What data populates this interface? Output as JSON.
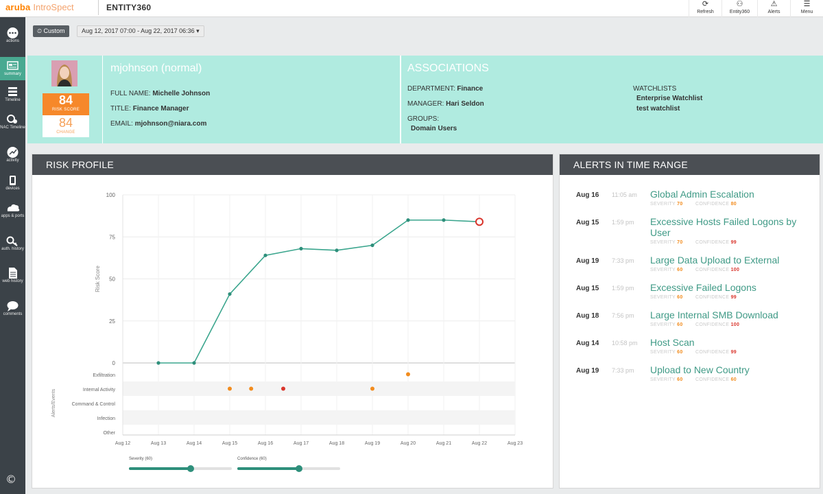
{
  "brand": {
    "part1": "aruba",
    "part2": "IntroSpect"
  },
  "app_name": "ENTITY360",
  "top_actions": [
    {
      "label": "Refresh",
      "icon": "refresh-icon"
    },
    {
      "label": "Entity360",
      "icon": "entity-icon"
    },
    {
      "label": "Alerts",
      "icon": "alerts-icon"
    },
    {
      "label": "Menu",
      "icon": "menu-icon"
    }
  ],
  "sidebar": {
    "items": [
      {
        "label": "actions",
        "icon": "actions-icon"
      },
      {
        "label": "summary",
        "icon": "summary-icon",
        "active": true
      },
      {
        "label": "Timeline",
        "icon": "timeline-icon"
      },
      {
        "label": "NAC Timeline",
        "icon": "nac-timeline-icon"
      },
      {
        "label": "activity",
        "icon": "activity-icon"
      },
      {
        "label": "devices",
        "icon": "devices-icon"
      },
      {
        "label": "apps & ports",
        "icon": "apps-icon"
      },
      {
        "label": "auth. history",
        "icon": "auth-history-icon"
      },
      {
        "label": "web history",
        "icon": "web-history-icon"
      },
      {
        "label": "comments",
        "icon": "comments-icon"
      }
    ],
    "copyright": "©"
  },
  "time_range": {
    "button": "Custom",
    "value": "Aug 12, 2017 07:00 - Aug 22, 2017 06:36"
  },
  "user": {
    "title": "mjohnson (normal)",
    "full_name_label": "FULL NAME:",
    "full_name": "Michelle Johnson",
    "title_label": "TITLE:",
    "job_title": "Finance Manager",
    "email_label": "EMAIL:",
    "email": "mjohnson@niara.com",
    "risk_score": "84",
    "risk_score_label": "RISK SCORE",
    "change": "84",
    "change_label": "CHANGE"
  },
  "associations": {
    "title": "ASSOCIATIONS",
    "department_label": "DEPARTMENT:",
    "department": "Finance",
    "manager_label": "MANAGER:",
    "manager": "Hari Seldon",
    "groups_label": "GROUPS:",
    "groups": [
      "Domain Users"
    ],
    "watchlists_label": "WATCHLISTS",
    "watchlists": [
      "Enterprise Watchlist",
      "test watchlist"
    ]
  },
  "risk_profile": {
    "title": "RISK PROFILE",
    "severity_label": "Severity (60)",
    "severity_value": 60,
    "confidence_label": "Confidence (60)",
    "confidence_value": 60
  },
  "chart_data": {
    "type": "line",
    "ylabel": "Risk Score",
    "ylim": [
      0,
      100
    ],
    "yticks": [
      0,
      25,
      50,
      75,
      100
    ],
    "xticks": [
      "Aug 12",
      "Aug 13",
      "Aug 14",
      "Aug 15",
      "Aug 16",
      "Aug 17",
      "Aug 18",
      "Aug 19",
      "Aug 20",
      "Aug 21",
      "Aug 22",
      "Aug 23"
    ],
    "x": [
      1,
      2,
      3,
      4,
      5,
      6,
      7,
      8,
      9,
      10
    ],
    "values": [
      0,
      0,
      41,
      64,
      68,
      67,
      70,
      85,
      85,
      84
    ],
    "current_index": 9,
    "grid": true,
    "events_label": "Alerts/Events",
    "event_categories": [
      "Exfiltration",
      "Internal Activity",
      "Command & Control",
      "Infection",
      "Other"
    ],
    "events": [
      {
        "x": 3.0,
        "category": "Internal Activity",
        "color": "#f28c1e"
      },
      {
        "x": 3.6,
        "category": "Internal Activity",
        "color": "#f28c1e"
      },
      {
        "x": 4.5,
        "category": "Internal Activity",
        "color": "#d9352c"
      },
      {
        "x": 7.0,
        "category": "Internal Activity",
        "color": "#f28c1e"
      },
      {
        "x": 8.0,
        "category": "Exfiltration",
        "color": "#f28c1e"
      }
    ]
  },
  "alerts_panel": {
    "title": "ALERTS IN TIME RANGE",
    "severity_label": "SEVERITY",
    "confidence_label": "CONFIDENCE",
    "items": [
      {
        "date": "Aug 16",
        "time": "11:05 am",
        "title": "Global Admin Escalation",
        "severity": "70",
        "confidence": "80",
        "conf_red": false
      },
      {
        "date": "Aug 15",
        "time": "1:59 pm",
        "title": "Excessive Hosts Failed Logons by User",
        "severity": "70",
        "confidence": "99",
        "conf_red": true
      },
      {
        "date": "Aug 19",
        "time": "7:33 pm",
        "title": "Large Data Upload to External",
        "severity": "60",
        "confidence": "100",
        "conf_red": true
      },
      {
        "date": "Aug 15",
        "time": "1:59 pm",
        "title": "Excessive Failed Logons",
        "severity": "60",
        "confidence": "99",
        "conf_red": true
      },
      {
        "date": "Aug 18",
        "time": "7:56 pm",
        "title": "Large Internal SMB Download",
        "severity": "60",
        "confidence": "100",
        "conf_red": true
      },
      {
        "date": "Aug 14",
        "time": "10:58 pm",
        "title": "Host Scan",
        "severity": "60",
        "confidence": "99",
        "conf_red": true
      },
      {
        "date": "Aug 19",
        "time": "7:33 pm",
        "title": "Upload to New Country",
        "severity": "60",
        "confidence": "60",
        "conf_red": false
      }
    ]
  }
}
